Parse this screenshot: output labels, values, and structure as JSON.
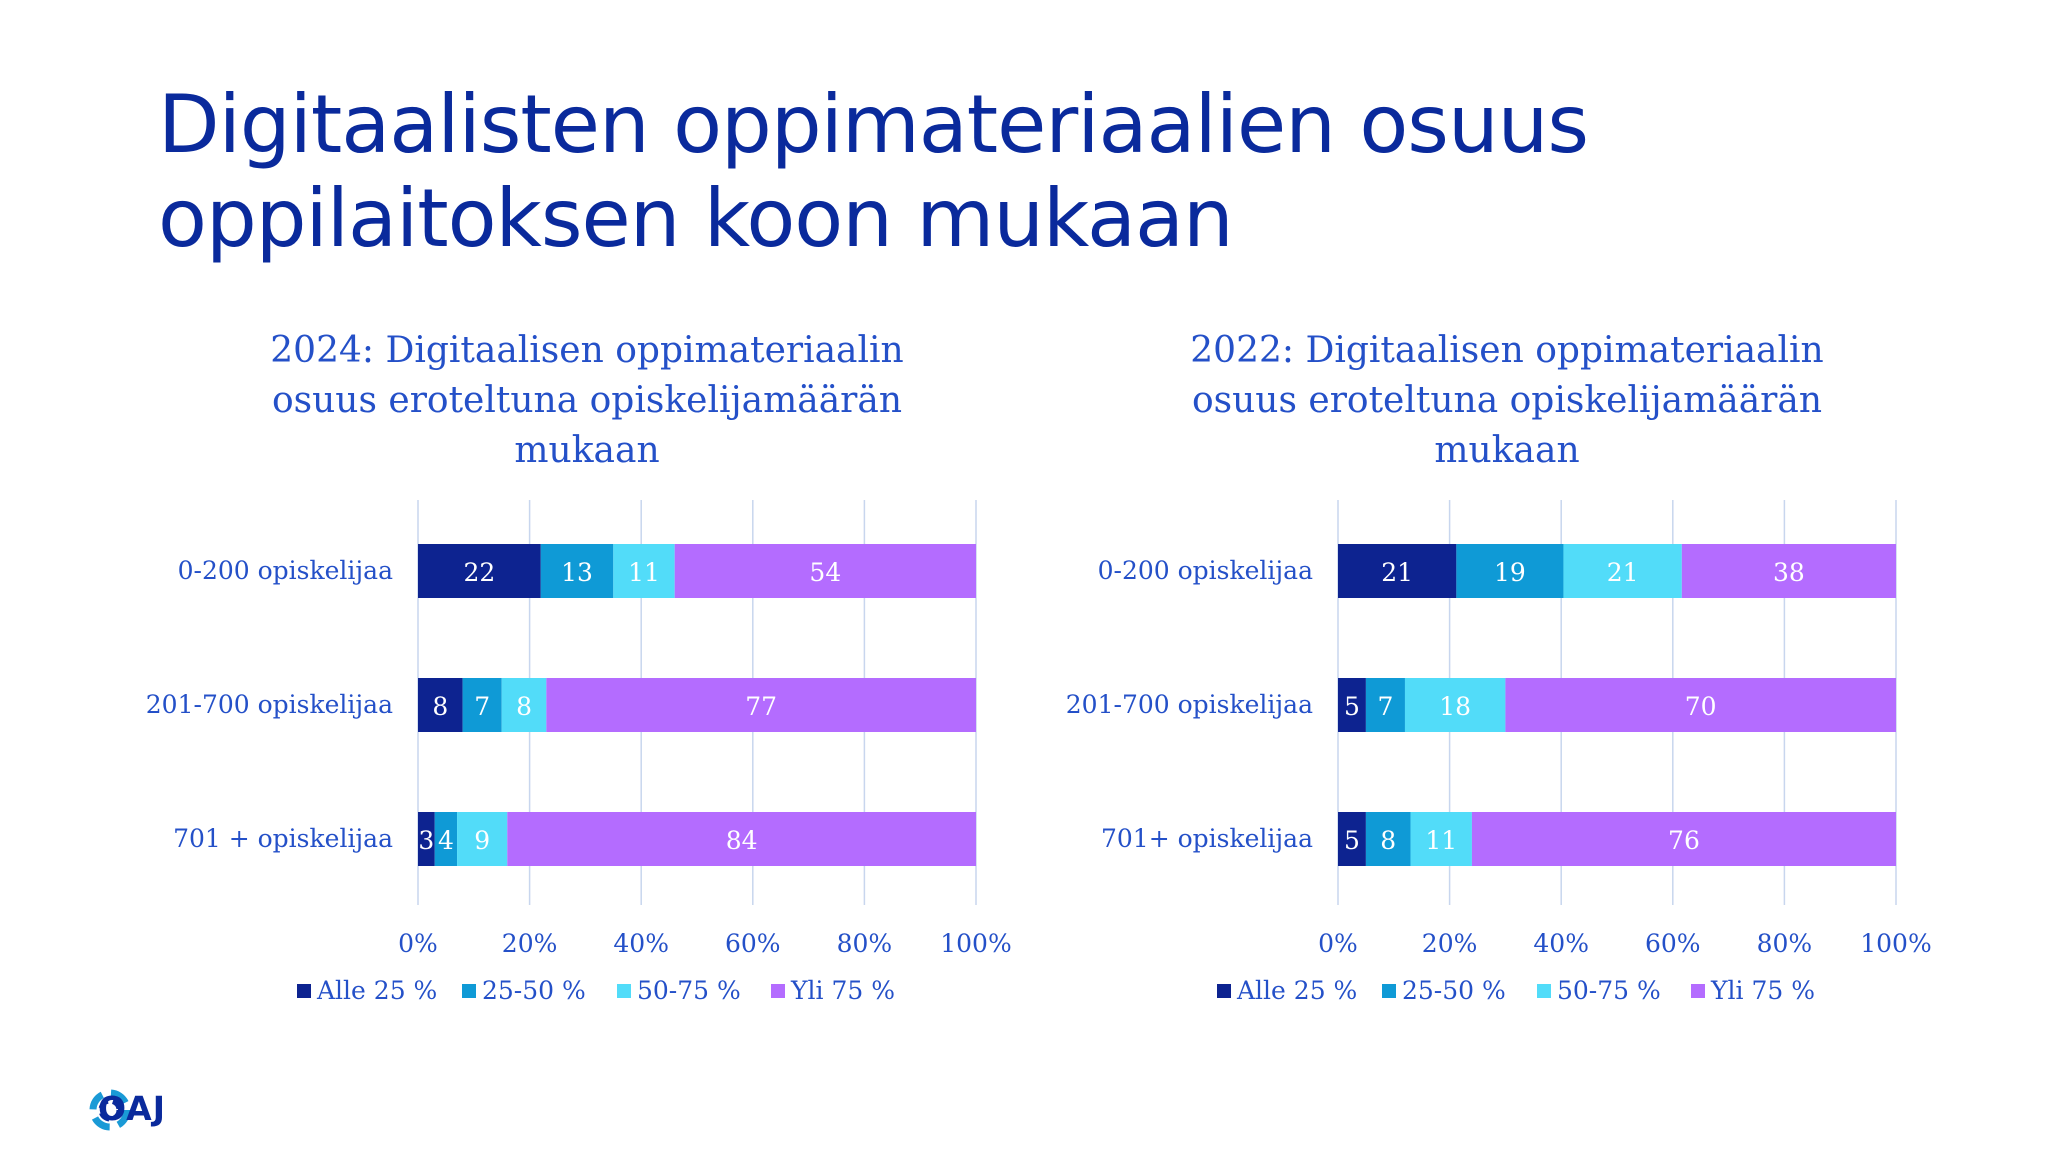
{
  "title_lines": [
    "Digitaalisten oppimateriaalien osuus",
    "oppilaitoksen koon mukaan"
  ],
  "logo_text": "OAJ",
  "chart_data": [
    {
      "type": "bar",
      "orientation": "horizontal",
      "stacked": "percent",
      "title_lines": [
        "2024: Digitaalisen oppimateriaalin",
        "osuus eroteltuna opiskelijamäärän",
        "mukaan"
      ],
      "categories": [
        "0-200 opiskelijaa",
        "201-700 opiskelijaa",
        "701 + opiskelijaa"
      ],
      "series": [
        {
          "name": "Alle 25 %",
          "color": "#0d2390",
          "values": [
            22,
            8,
            3
          ]
        },
        {
          "name": "25-50 %",
          "color": "#0f9ad6",
          "values": [
            13,
            7,
            4
          ]
        },
        {
          "name": "50-75 %",
          "color": "#52dcf9",
          "values": [
            11,
            8,
            9
          ]
        },
        {
          "name": "Yli 75 %",
          "color": "#b46cff",
          "values": [
            54,
            77,
            84
          ]
        }
      ],
      "xlim": [
        0,
        100
      ],
      "xticks": [
        "0%",
        "20%",
        "40%",
        "60%",
        "80%",
        "100%"
      ],
      "grid": true,
      "legend": "bottom"
    },
    {
      "type": "bar",
      "orientation": "horizontal",
      "stacked": "percent",
      "title_lines": [
        "2022: Digitaalisen oppimateriaalin",
        "osuus eroteltuna opiskelijamäärän",
        "mukaan"
      ],
      "categories": [
        "0-200 opiskelijaa",
        "201-700 opiskelijaa",
        "701+ opiskelijaa"
      ],
      "series": [
        {
          "name": "Alle 25 %",
          "color": "#0d2390",
          "values": [
            21,
            5,
            5
          ]
        },
        {
          "name": "25-50 %",
          "color": "#0f9ad6",
          "values": [
            19,
            7,
            8
          ]
        },
        {
          "name": "50-75 %",
          "color": "#52dcf9",
          "values": [
            21,
            18,
            11
          ]
        },
        {
          "name": "Yli 75 %",
          "color": "#b46cff",
          "values": [
            38,
            70,
            76
          ]
        }
      ],
      "xlim": [
        0,
        100
      ],
      "xticks": [
        "0%",
        "20%",
        "40%",
        "60%",
        "80%",
        "100%"
      ],
      "grid": true,
      "legend": "bottom"
    }
  ]
}
